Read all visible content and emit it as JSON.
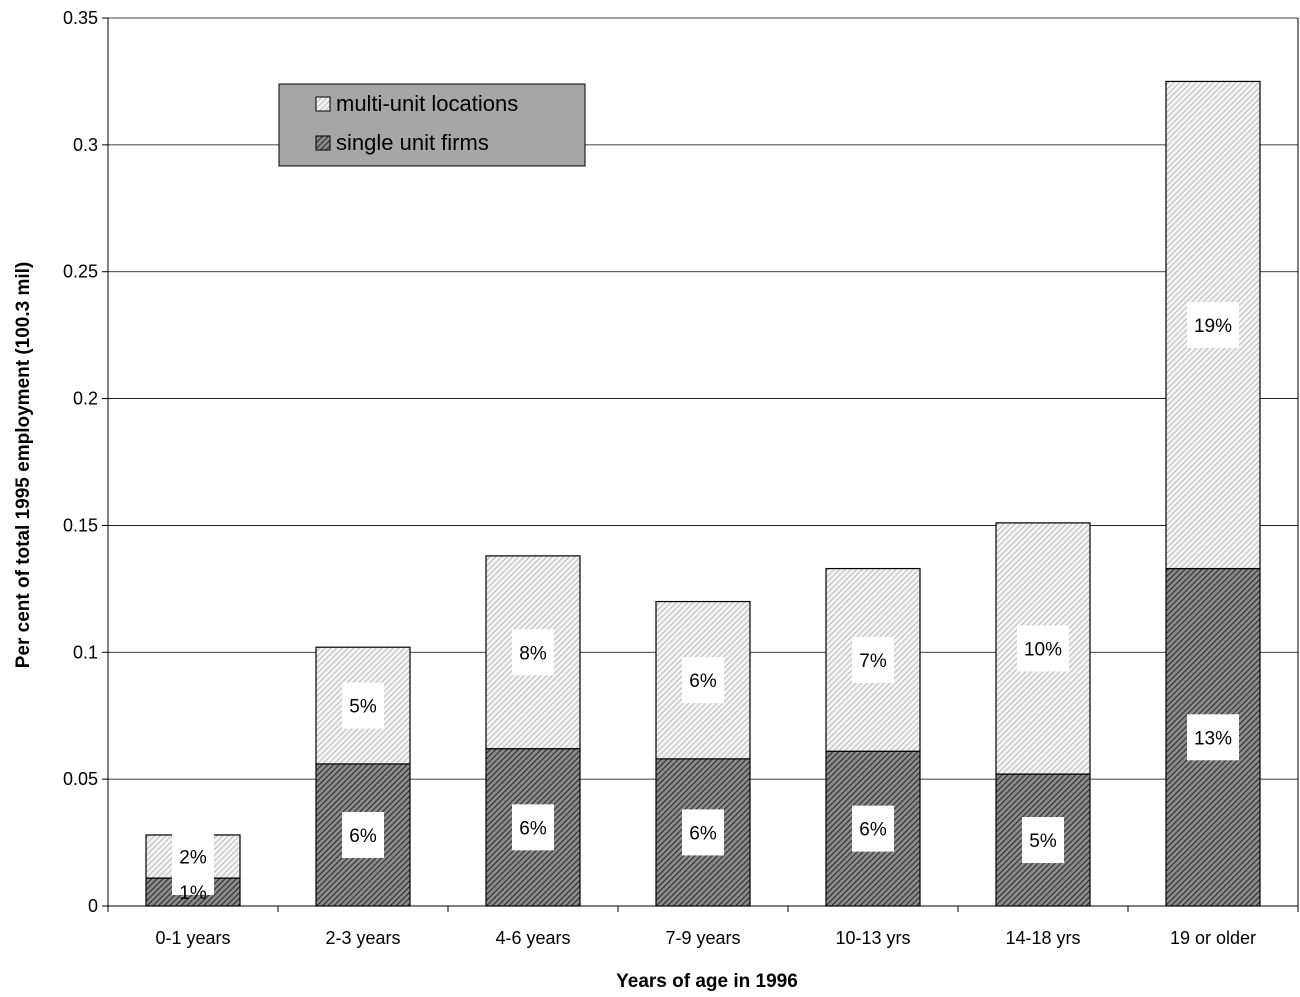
{
  "chart_data": {
    "type": "bar",
    "stacked": true,
    "title": "",
    "xlabel": "Years of age in 1996",
    "ylabel": "Per cent of total 1995 employment (100.3 mil)",
    "categories": [
      "0-1 years",
      "2-3 years",
      "4-6 years",
      "7-9 years",
      "10-13 yrs",
      "14-18 yrs",
      "19 or older"
    ],
    "ylim": [
      0,
      0.35
    ],
    "yticks": [
      "0",
      "0.05",
      "0.1",
      "0.15",
      "0.2",
      "0.25",
      "0.3",
      "0.35"
    ],
    "grid": true,
    "legend_position": "top-left",
    "series": [
      {
        "name": "single unit firms",
        "values": [
          0.011,
          0.056,
          0.062,
          0.058,
          0.061,
          0.052,
          0.133
        ],
        "labels": [
          "1%",
          "6%",
          "6%",
          "6%",
          "6%",
          "5%",
          "13%"
        ],
        "fill": "#4d4d4d",
        "pattern": "dense-hatch"
      },
      {
        "name": "multi-unit locations",
        "values": [
          0.017,
          0.046,
          0.076,
          0.062,
          0.072,
          0.099,
          0.192
        ],
        "labels": [
          "2%",
          "5%",
          "8%",
          "6%",
          "7%",
          "10%",
          "19%"
        ],
        "fill": "#d9d9d9",
        "pattern": "light-hatch"
      }
    ]
  },
  "legend": {
    "background": "#a6a6a6",
    "items": [
      "multi-unit locations",
      "single unit firms"
    ]
  }
}
